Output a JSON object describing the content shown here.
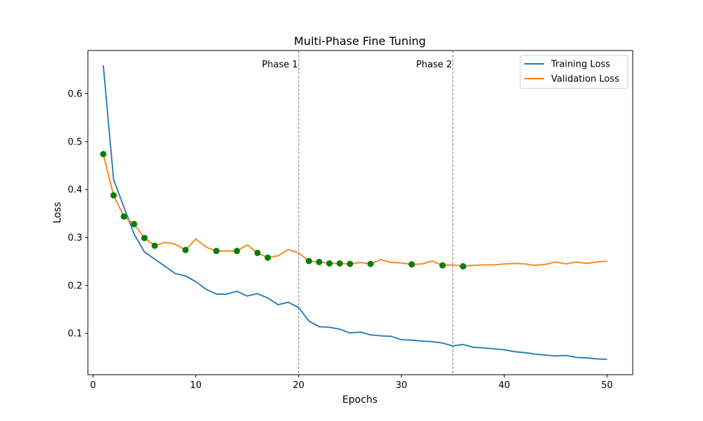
{
  "chart_data": {
    "type": "line",
    "title": "Multi-Phase Fine Tuning",
    "xlabel": "Epochs",
    "ylabel": "Loss",
    "xlim": [
      -0.5,
      52.5
    ],
    "ylim": [
      0.014,
      0.69
    ],
    "xticks": [
      0,
      10,
      20,
      30,
      40,
      50
    ],
    "yticks": [
      0.1,
      0.2,
      0.3,
      0.4,
      0.5,
      0.6
    ],
    "grid": false,
    "legend_position": "top-right",
    "x": [
      1,
      2,
      3,
      4,
      5,
      6,
      7,
      8,
      9,
      10,
      11,
      12,
      13,
      14,
      15,
      16,
      17,
      18,
      19,
      20,
      21,
      22,
      23,
      24,
      25,
      26,
      27,
      28,
      29,
      30,
      31,
      32,
      33,
      34,
      35,
      36,
      37,
      38,
      39,
      40,
      41,
      42,
      43,
      44,
      45,
      46,
      47,
      48,
      49,
      50
    ],
    "series": [
      {
        "name": "Training Loss",
        "color": "#1f77b4",
        "values": [
          0.659,
          0.421,
          0.364,
          0.307,
          0.27,
          0.255,
          0.24,
          0.225,
          0.22,
          0.208,
          0.192,
          0.182,
          0.182,
          0.188,
          0.178,
          0.183,
          0.174,
          0.16,
          0.165,
          0.154,
          0.126,
          0.114,
          0.113,
          0.109,
          0.101,
          0.103,
          0.097,
          0.095,
          0.094,
          0.087,
          0.086,
          0.084,
          0.083,
          0.08,
          0.074,
          0.077,
          0.071,
          0.07,
          0.068,
          0.066,
          0.062,
          0.06,
          0.057,
          0.055,
          0.053,
          0.054,
          0.05,
          0.049,
          0.047,
          0.046
        ]
      },
      {
        "name": "Validation Loss",
        "color": "#ff7f0e",
        "values": [
          0.474,
          0.388,
          0.344,
          0.328,
          0.299,
          0.283,
          0.29,
          0.286,
          0.274,
          0.297,
          0.28,
          0.272,
          0.272,
          0.272,
          0.285,
          0.268,
          0.258,
          0.262,
          0.275,
          0.268,
          0.251,
          0.249,
          0.246,
          0.246,
          0.245,
          0.248,
          0.245,
          0.254,
          0.248,
          0.247,
          0.244,
          0.245,
          0.251,
          0.242,
          0.243,
          0.24,
          0.242,
          0.243,
          0.243,
          0.245,
          0.246,
          0.245,
          0.242,
          0.244,
          0.249,
          0.245,
          0.249,
          0.246,
          0.249,
          0.251
        ]
      }
    ],
    "markers": {
      "color": "#008000",
      "points": [
        {
          "x": 1,
          "y": 0.474
        },
        {
          "x": 2,
          "y": 0.388
        },
        {
          "x": 3,
          "y": 0.344
        },
        {
          "x": 4,
          "y": 0.328
        },
        {
          "x": 5,
          "y": 0.299
        },
        {
          "x": 6,
          "y": 0.283
        },
        {
          "x": 9,
          "y": 0.274
        },
        {
          "x": 12,
          "y": 0.272
        },
        {
          "x": 14,
          "y": 0.272
        },
        {
          "x": 16,
          "y": 0.268
        },
        {
          "x": 17,
          "y": 0.258
        },
        {
          "x": 21,
          "y": 0.251
        },
        {
          "x": 22,
          "y": 0.249
        },
        {
          "x": 23,
          "y": 0.246
        },
        {
          "x": 24,
          "y": 0.246
        },
        {
          "x": 25,
          "y": 0.245
        },
        {
          "x": 27,
          "y": 0.245
        },
        {
          "x": 31,
          "y": 0.244
        },
        {
          "x": 34,
          "y": 0.242
        },
        {
          "x": 36,
          "y": 0.24
        }
      ]
    },
    "phase_lines": [
      {
        "x": 20,
        "label": "Phase 1"
      },
      {
        "x": 35,
        "label": "Phase 2"
      }
    ]
  }
}
